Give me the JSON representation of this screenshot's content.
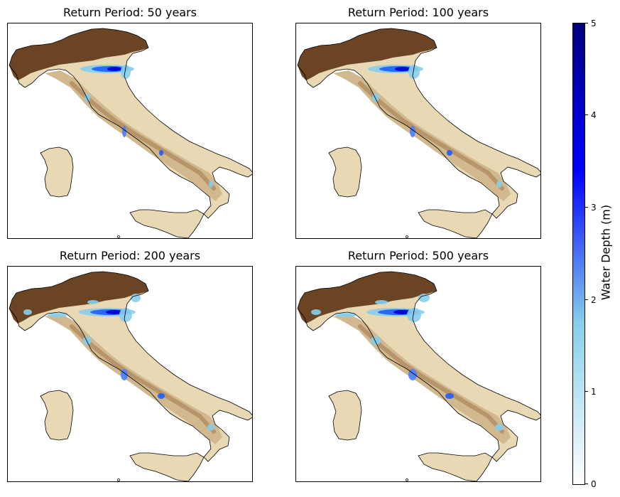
{
  "panels": [
    {
      "title": "Return Period: 50 years",
      "return_period_years": 50
    },
    {
      "title": "Return Period: 100 years",
      "return_period_years": 100
    },
    {
      "title": "Return Period: 200 years",
      "return_period_years": 200
    },
    {
      "title": "Return Period: 500 years",
      "return_period_years": 500
    }
  ],
  "colorbar": {
    "label": "Water Depth (m)",
    "min": 0,
    "max": 5,
    "ticks": [
      "0",
      "1",
      "2",
      "3",
      "4",
      "5"
    ],
    "colors": [
      "#ffffff",
      "#87ceeb",
      "#0000ff",
      "#00007f"
    ]
  },
  "terrain_colors": [
    "#e9d8b4",
    "#d2b88e",
    "#a67b52",
    "#6b4423"
  ]
}
